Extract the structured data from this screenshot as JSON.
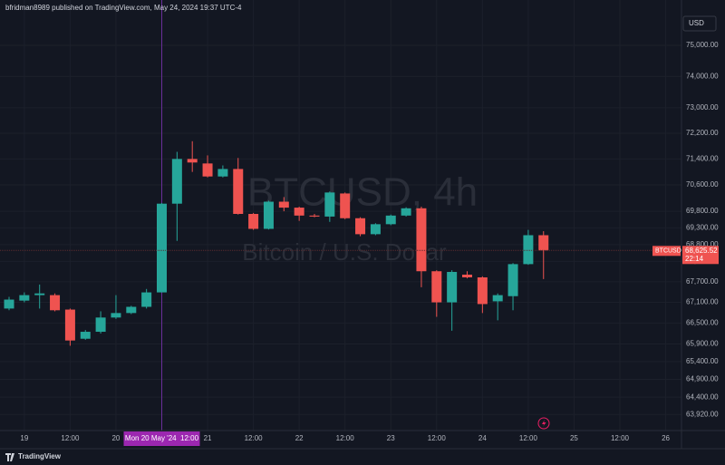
{
  "header": {
    "publisher": "bfridman8989 published on TradingView.com, May 24, 2024 19:37 UTC-4",
    "currency": "USD",
    "logo": "TradingView"
  },
  "chart_data": {
    "type": "candlestick",
    "watermark_symbol": "BTCUSD, 4h",
    "watermark_name": "Bitcoin / U.S. Dollar",
    "categories": [
      null,
      "19",
      null,
      null,
      "12:00",
      null,
      null,
      "20",
      null,
      null,
      "Mon 20 May '24  12:00",
      null,
      null,
      "21",
      null,
      null,
      "12:00",
      null,
      null,
      "22",
      null,
      null,
      "12:00",
      null,
      null,
      "23",
      null,
      null,
      "12:00",
      null,
      null,
      "24",
      null,
      null,
      "12:00",
      null,
      null,
      "25",
      null,
      null,
      "12:00",
      null,
      null,
      "26"
    ],
    "crosshair_index": 10,
    "open": [
      66920,
      67150,
      67310,
      67310,
      66890,
      66050,
      66250,
      66660,
      66790,
      66970,
      67390,
      70030,
      71400,
      71260,
      70860,
      71090,
      69720,
      69270,
      70090,
      69910,
      69670,
      69640,
      70340,
      69590,
      69110,
      69410,
      69670,
      69890,
      68010,
      67100,
      67910,
      67830,
      67130,
      67280,
      68220,
      69080,
      null,
      null,
      null,
      null,
      null,
      null,
      null,
      null
    ],
    "high": [
      67260,
      67390,
      67620,
      67360,
      66920,
      66300,
      66840,
      67310,
      67000,
      67490,
      70050,
      71620,
      71950,
      71510,
      71200,
      71430,
      69750,
      70120,
      70230,
      69940,
      69720,
      70400,
      70370,
      69620,
      69440,
      69700,
      69920,
      69940,
      68040,
      68040,
      68010,
      67860,
      67360,
      68250,
      69240,
      69200,
      null,
      null,
      null,
      null,
      null,
      null,
      null,
      null
    ],
    "low": [
      66870,
      67100,
      66920,
      66840,
      65850,
      66020,
      66200,
      66620,
      66760,
      66920,
      67390,
      68910,
      71000,
      70830,
      70830,
      69700,
      69240,
      69250,
      69800,
      69510,
      69620,
      69480,
      69560,
      69050,
      69080,
      69380,
      69640,
      67540,
      66680,
      66280,
      67800,
      66790,
      66580,
      66870,
      68200,
      67780,
      null,
      null,
      null,
      null,
      null,
      null,
      null,
      null
    ],
    "close": [
      67180,
      67310,
      67360,
      66870,
      66000,
      66250,
      66660,
      66790,
      66970,
      67390,
      70030,
      71400,
      71290,
      70860,
      71090,
      69720,
      69270,
      70090,
      69910,
      69670,
      69640,
      70370,
      69590,
      69110,
      69410,
      69670,
      69890,
      68010,
      67100,
      67990,
      67830,
      67050,
      67310,
      68220,
      69080,
      68625.52,
      null,
      null,
      null,
      null,
      null,
      null,
      null,
      null
    ],
    "up_color": "#26a69a",
    "down_color": "#ef5350",
    "log_scale": true,
    "grid": true,
    "ylim": [
      63600,
      75950
    ],
    "yticks": [
      {
        "value": 75000,
        "label": "75,000.00"
      },
      {
        "value": 74000,
        "label": "74,000.00"
      },
      {
        "value": 73000,
        "label": "73,000.00"
      },
      {
        "value": 72200,
        "label": "72,200.00"
      },
      {
        "value": 71400,
        "label": "71,400.00"
      },
      {
        "value": 70600,
        "label": "70,600.00"
      },
      {
        "value": 69800,
        "label": "69,800.00"
      },
      {
        "value": 69300,
        "label": "69,300.00"
      },
      {
        "value": 68800,
        "label": "68,800.00"
      },
      {
        "value": 68300,
        "label": "68,300.00"
      },
      {
        "value": 67700,
        "label": "67,700.00"
      },
      {
        "value": 67100,
        "label": "67,100.00"
      },
      {
        "value": 66500,
        "label": "66,500.00"
      },
      {
        "value": 65900,
        "label": "65,900.00"
      },
      {
        "value": 65400,
        "label": "65,400.00"
      },
      {
        "value": 64900,
        "label": "64,900.00"
      },
      {
        "value": 64400,
        "label": "64,400.00"
      },
      {
        "value": 63920,
        "label": "63,920.00"
      }
    ],
    "last_price": {
      "symbol": "BTCUSD",
      "value": 68625.52,
      "label": "68,625.52",
      "countdown": "22:14"
    }
  }
}
